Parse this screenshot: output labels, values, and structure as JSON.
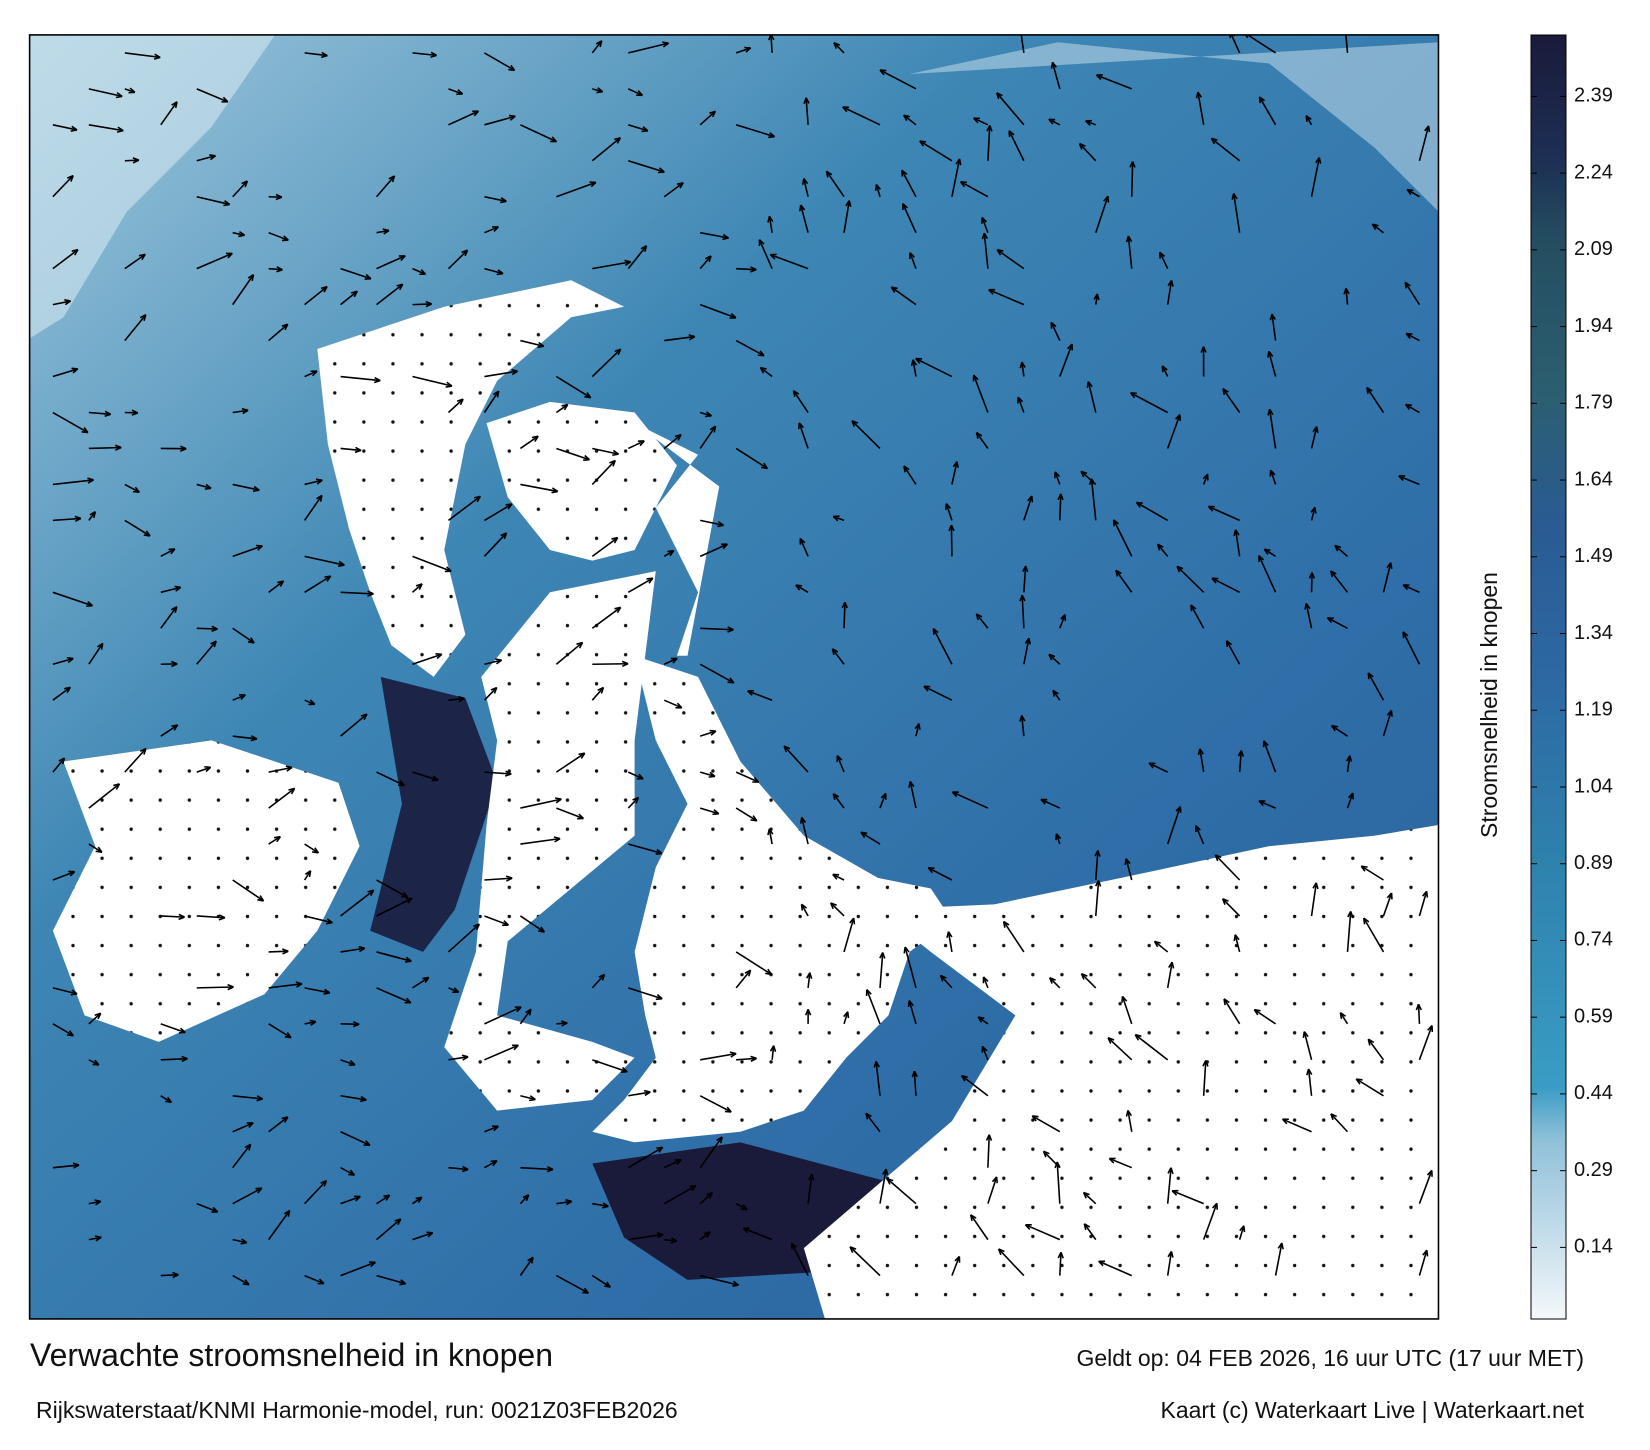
{
  "title": "Verwachte stroomsnelheid in knopen",
  "subtitle": "Rijkswaterstaat/KNMI Harmonie-model, run: 0021Z03FEB2026",
  "valid_time": "Geldt op: 04 FEB 2026, 16 uur UTC (17 uur MET)",
  "credit": "Kaart (c) Waterkaart Live | Waterkaart.net",
  "colorbar": {
    "label": "Stroomsnelheid in knopen",
    "range": [
      0,
      2.51
    ],
    "ticks": [
      0.14,
      0.29,
      0.44,
      0.59,
      0.74,
      0.89,
      1.04,
      1.19,
      1.34,
      1.49,
      1.64,
      1.79,
      1.94,
      2.09,
      2.24,
      2.39
    ]
  }
}
